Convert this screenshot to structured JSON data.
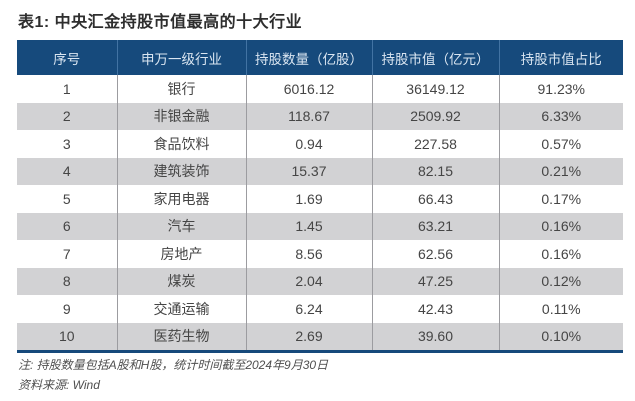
{
  "title": "表1: 中央汇金持股市值最高的十大行业",
  "table": {
    "columns": [
      "序号",
      "申万一级行业",
      "持股数量（亿股）",
      "持股市值（亿元）",
      "持股市值占比"
    ],
    "rows": [
      [
        "1",
        "银行",
        "6016.12",
        "36149.12",
        "91.23%"
      ],
      [
        "2",
        "非银金融",
        "118.67",
        "2509.92",
        "6.33%"
      ],
      [
        "3",
        "食品饮料",
        "0.94",
        "227.58",
        "0.57%"
      ],
      [
        "4",
        "建筑装饰",
        "15.37",
        "82.15",
        "0.21%"
      ],
      [
        "5",
        "家用电器",
        "1.69",
        "66.43",
        "0.17%"
      ],
      [
        "6",
        "汽车",
        "1.45",
        "63.21",
        "0.16%"
      ],
      [
        "7",
        "房地产",
        "8.56",
        "62.56",
        "0.16%"
      ],
      [
        "8",
        "煤炭",
        "2.04",
        "47.25",
        "0.12%"
      ],
      [
        "9",
        "交通运输",
        "6.24",
        "42.43",
        "0.11%"
      ],
      [
        "10",
        "医药生物",
        "2.69",
        "39.60",
        "0.10%"
      ]
    ]
  },
  "notes": {
    "note": "注: 持股数量包括A股和H股，统计时间截至2024年9月30日",
    "source": "资料来源: Wind"
  },
  "colors": {
    "header_bg": "#164a7c",
    "header_text": "#d9e5f1",
    "header_divider": "#4273a3",
    "row_alt_bg": "#d2d2d4",
    "row_bg": "#ffffff",
    "body_text": "#454545",
    "body_divider": "#9c9ca0",
    "bottom_border": "#16497b",
    "title_text": "#2e2e2e",
    "note_text": "#4f4f4f"
  }
}
